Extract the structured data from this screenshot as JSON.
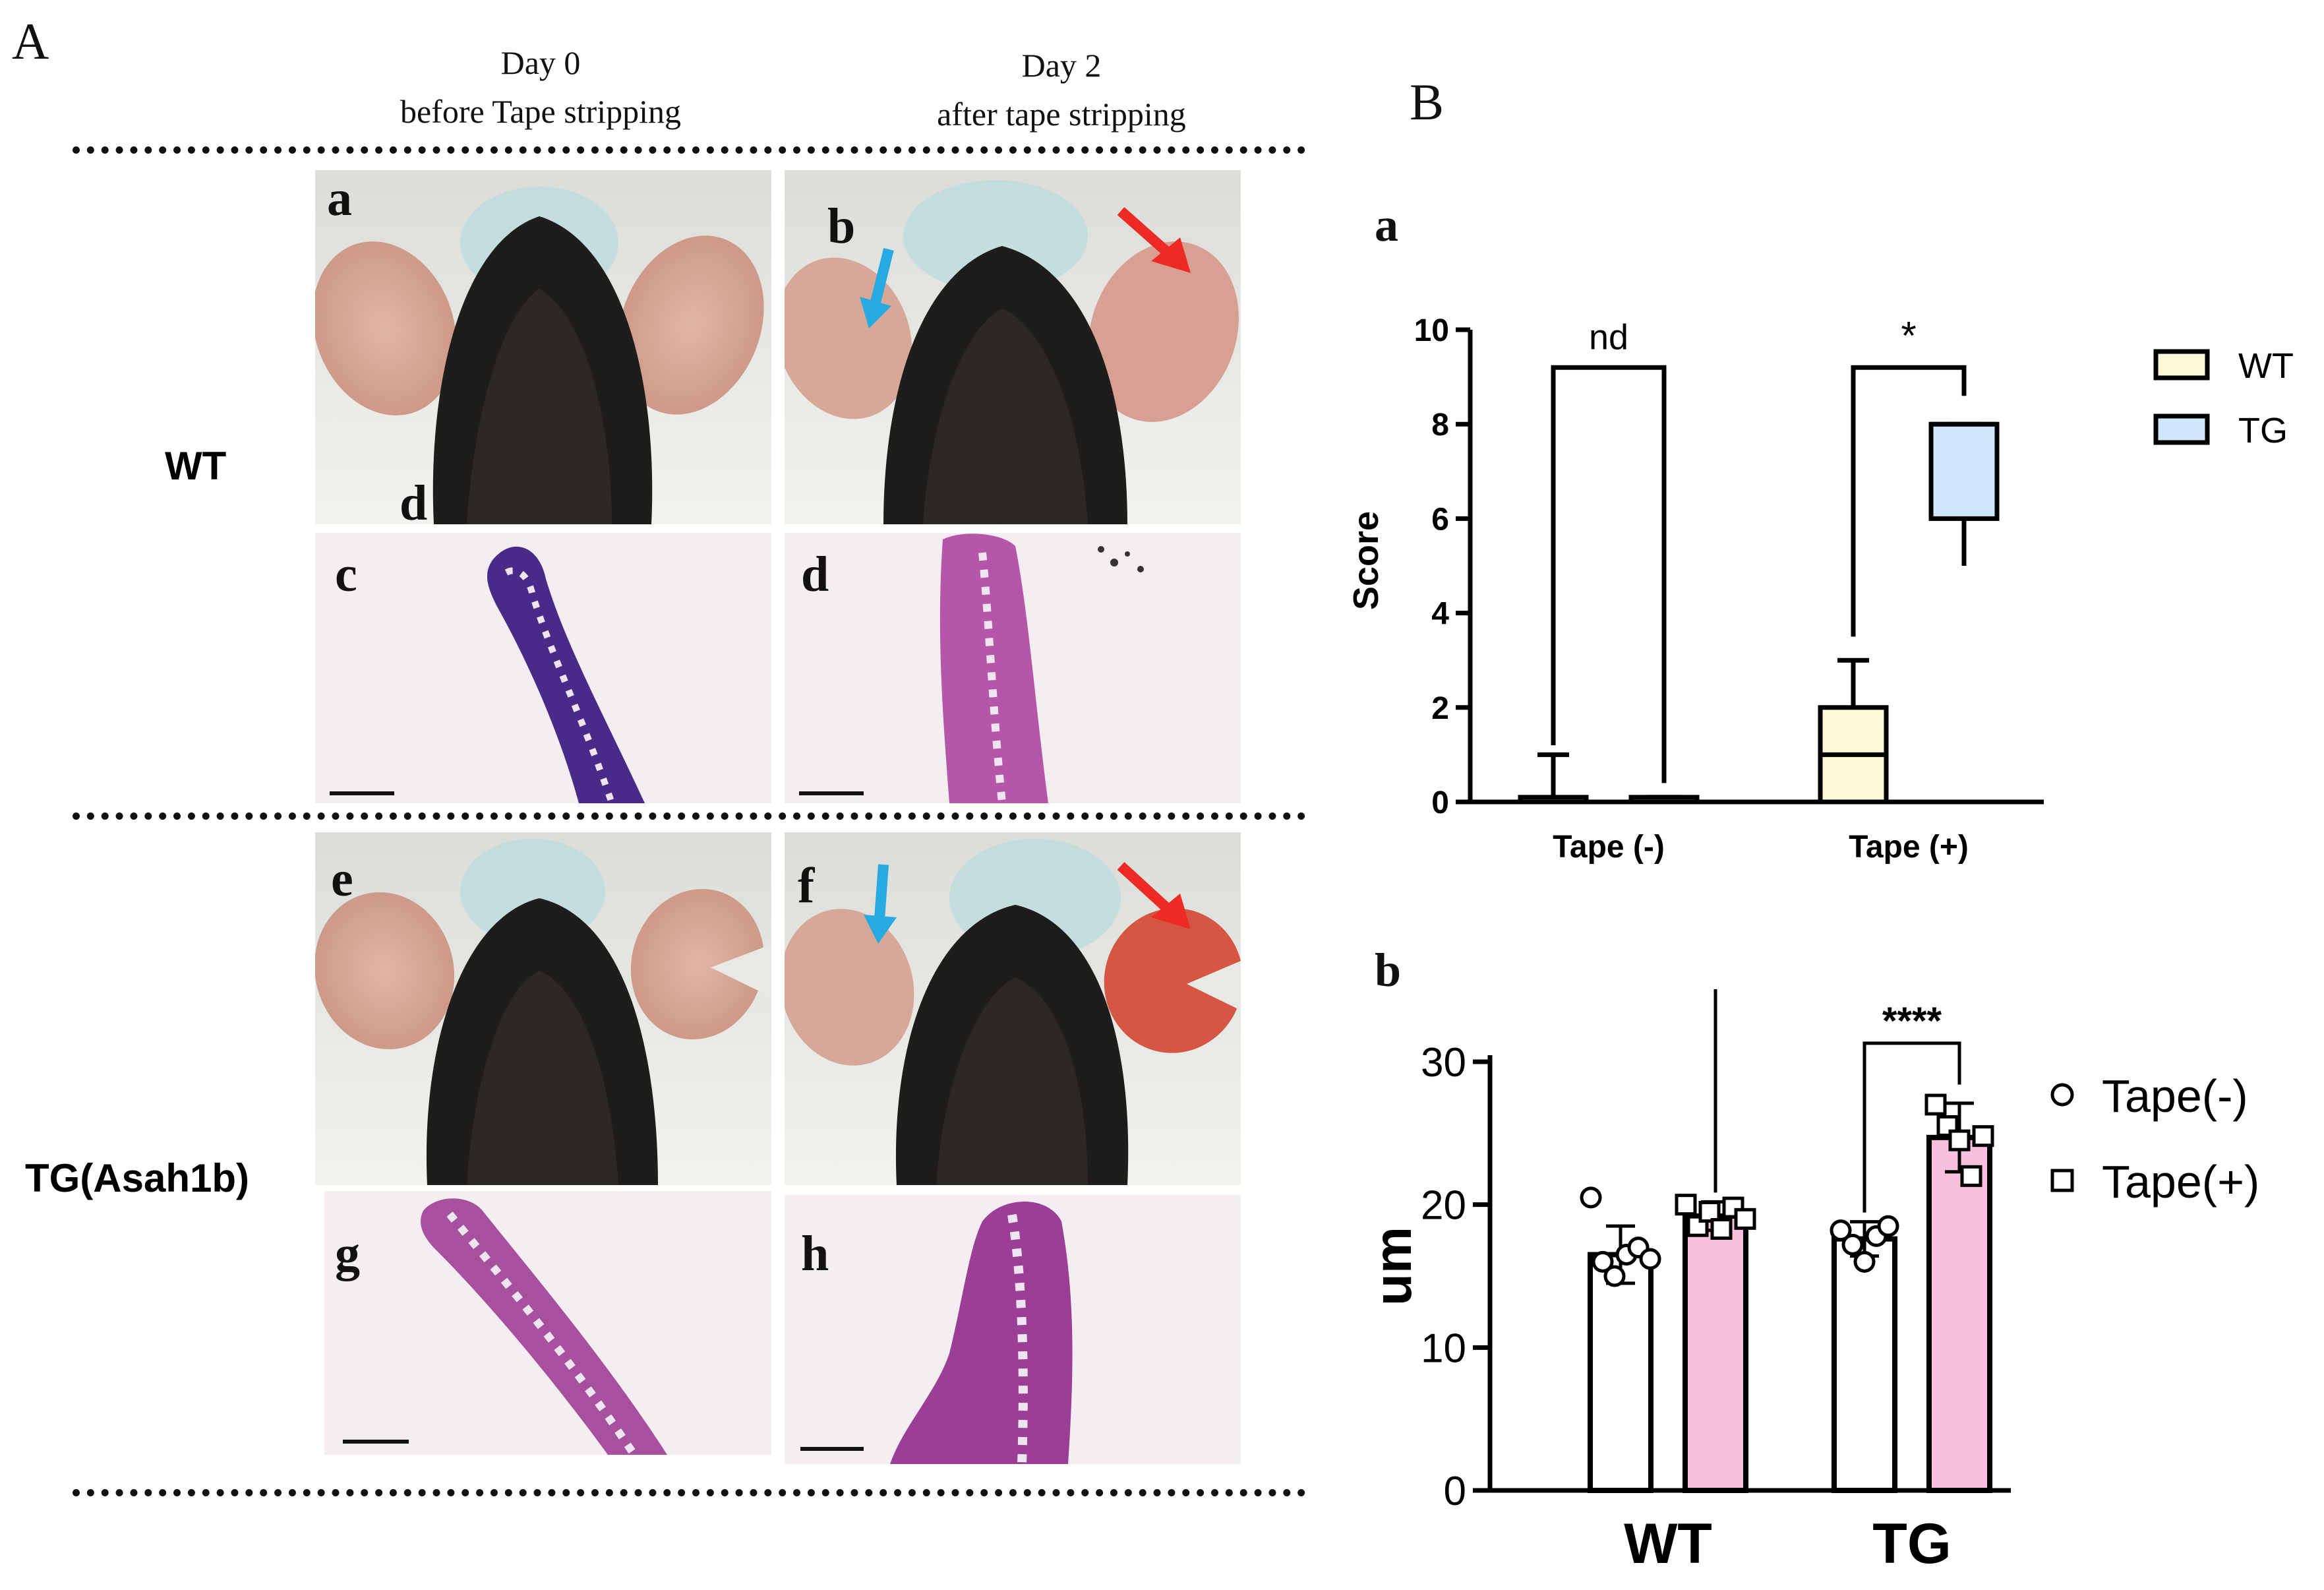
{
  "figure": {
    "label_A": "A",
    "label_B": "B",
    "col_day0_line1": "Day 0",
    "col_day0_line2": "before Tape stripping",
    "col_day2_line1": "Day 2",
    "col_day2_line2": "after tape stripping",
    "row_wt": "WT",
    "row_tg": "TG(Asah1b)",
    "stray_letter": "d",
    "panels": [
      "a",
      "b",
      "c",
      "d",
      "e",
      "f",
      "g",
      "h"
    ],
    "arrow_colors": {
      "blue": "#27a9e1",
      "red": "#ee2a24"
    },
    "subfig_a": "a",
    "subfig_b": "b"
  },
  "chart_data": [
    {
      "type": "box",
      "panel": "a",
      "ylabel": "Score",
      "ylim": [
        0,
        10
      ],
      "yticks": [
        "0",
        "2",
        "4",
        "6",
        "8",
        "10"
      ],
      "categories": [
        "Tape (-)",
        "Tape (+)"
      ],
      "legend": {
        "placement": "right",
        "entries": [
          {
            "name": "WT",
            "color": "#fdf8d7"
          },
          {
            "name": "TG",
            "color": "#cfe6fb"
          }
        ]
      },
      "series": [
        {
          "name": "WT",
          "color": "#fdf8d7",
          "boxes": [
            {
              "min": 0,
              "q1": 0,
              "median": 0,
              "q3": 0.1,
              "max": 1
            },
            {
              "min": 0,
              "q1": 0,
              "median": 1,
              "q3": 2,
              "max": 3
            }
          ]
        },
        {
          "name": "TG",
          "color": "#cfe6fb",
          "boxes": [
            {
              "min": 0,
              "q1": 0,
              "median": 0,
              "q3": 0.1,
              "max": 0.1
            },
            {
              "min": 5,
              "q1": 6,
              "median": 8,
              "q3": 8,
              "max": 8
            }
          ]
        }
      ],
      "annotations": [
        {
          "text": "nd",
          "between": [
            "Tape (-) WT",
            "Tape (-) TG"
          ]
        },
        {
          "text": "*",
          "between": [
            "Tape (+) WT",
            "Tape (+) TG"
          ]
        }
      ]
    },
    {
      "type": "bar",
      "panel": "b",
      "ylabel": "um",
      "ylim": [
        0,
        30
      ],
      "yticks": [
        "0",
        "10",
        "20",
        "30"
      ],
      "categories": [
        "WT",
        "TG"
      ],
      "legend": {
        "placement": "right",
        "entries": [
          {
            "name": "Tape(-)",
            "marker": "circle"
          },
          {
            "name": "Tape(+)",
            "marker": "square"
          }
        ]
      },
      "series": [
        {
          "name": "Tape(-)",
          "color": "#ffffff",
          "marker": "circle",
          "values": [
            16.5,
            17.6
          ],
          "errors": [
            2.0,
            1.2
          ],
          "points": [
            [
              20.5,
              16.0,
              15.0,
              16.5,
              17.0,
              16.2
            ],
            [
              18.2,
              17.2,
              16.0,
              17.8,
              18.5
            ]
          ]
        },
        {
          "name": "Tape(+)",
          "color": "#f9c0dd",
          "marker": "square",
          "values": [
            19.2,
            24.7
          ],
          "errors": [
            1.0,
            2.4
          ],
          "points": [
            [
              20.0,
              18.5,
              19.5,
              18.3,
              19.8,
              19.0
            ],
            [
              27.0,
              25.5,
              24.5,
              22.0,
              24.8
            ]
          ]
        }
      ],
      "annotations": [
        {
          "text": "***",
          "between": [
            "WT Tape(+)",
            "TG Tape(+)"
          ]
        },
        {
          "text": "****",
          "between": [
            "TG Tape(-)",
            "TG Tape(+)"
          ]
        }
      ]
    }
  ]
}
